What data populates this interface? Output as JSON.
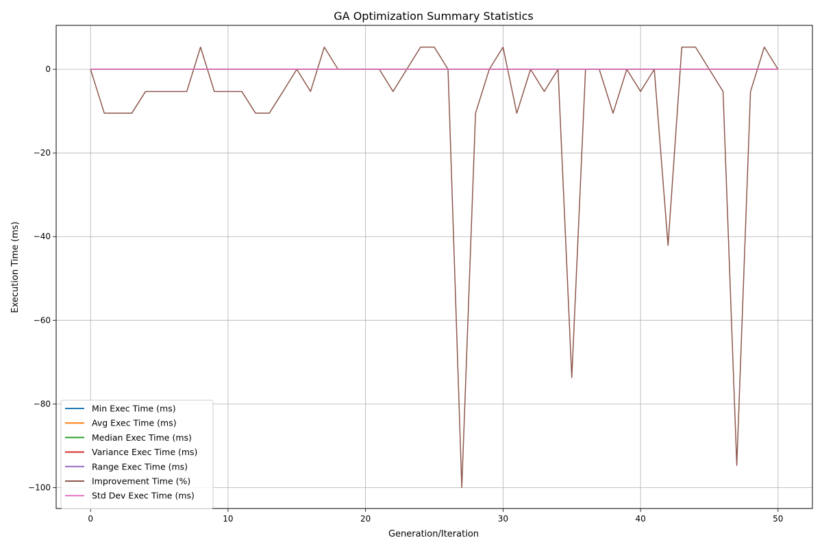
{
  "chart_data": {
    "type": "line",
    "title": "GA Optimization Summary Statistics",
    "xlabel": "Generation/Iteration",
    "ylabel": "Execution Time (ms)",
    "xlim": [
      -2.5,
      52.5
    ],
    "ylim": [
      -105,
      10.5
    ],
    "xticks": [
      0,
      10,
      20,
      30,
      40,
      50
    ],
    "yticks": [
      0,
      -20,
      -40,
      -60,
      -80,
      -100
    ],
    "xtick_labels": [
      "0",
      "10",
      "20",
      "30",
      "40",
      "50"
    ],
    "ytick_labels": [
      "0",
      "−20",
      "−40",
      "−60",
      "−80",
      "−100"
    ],
    "grid": true,
    "legend_position": "lower-left",
    "x": [
      0,
      1,
      2,
      3,
      4,
      5,
      6,
      7,
      8,
      9,
      10,
      11,
      12,
      13,
      14,
      15,
      16,
      17,
      18,
      19,
      20,
      21,
      22,
      23,
      24,
      25,
      26,
      27,
      28,
      29,
      30,
      31,
      32,
      33,
      34,
      35,
      36,
      37,
      38,
      39,
      40,
      41,
      42,
      43,
      44,
      45,
      46,
      47,
      48,
      49,
      50
    ],
    "series": [
      {
        "name": "Min Exec Time (ms)",
        "color": "#1f77b4",
        "values": [
          0.05,
          0.01,
          0.01,
          0.01,
          0.01,
          0.01,
          0.01,
          0.01,
          0.01,
          0.01,
          0.01,
          0.01,
          0.01,
          0.01,
          0.01,
          0.01,
          0.01,
          0.01,
          0.01,
          0.01,
          0.01,
          0.01,
          0.01,
          0.01,
          0.01,
          0.01,
          0.01,
          0.01,
          0.01,
          0.01,
          0.01,
          0.01,
          0.01,
          0.01,
          0.01,
          0.01,
          0.01,
          0.01,
          0.01,
          0.01,
          0.01,
          0.01,
          0.01,
          0.01,
          0.01,
          0.01,
          0.01,
          0.01,
          0.01,
          0.01,
          0.01
        ]
      },
      {
        "name": "Avg Exec Time (ms)",
        "color": "#ff7f0e",
        "values": [
          0.02,
          0.02,
          0.02,
          0.02,
          0.02,
          0.02,
          0.02,
          0.02,
          0.02,
          0.02,
          0.02,
          0.02,
          0.02,
          0.02,
          0.02,
          0.02,
          0.02,
          0.02,
          0.02,
          0.02,
          0.02,
          0.02,
          0.02,
          0.02,
          0.02,
          0.02,
          0.02,
          0.02,
          0.02,
          0.02,
          0.02,
          0.02,
          0.02,
          0.02,
          0.02,
          0.02,
          0.02,
          0.02,
          0.02,
          0.02,
          0.02,
          0.02,
          0.02,
          0.02,
          0.02,
          0.02,
          0.02,
          0.02,
          0.02,
          0.02,
          0.02
        ]
      },
      {
        "name": "Median Exec Time (ms)",
        "color": "#2ca02c",
        "values": [
          0.02,
          0.02,
          0.02,
          0.02,
          0.02,
          0.02,
          0.02,
          0.02,
          0.02,
          0.02,
          0.02,
          0.02,
          0.02,
          0.02,
          0.02,
          0.02,
          0.02,
          0.02,
          0.02,
          0.02,
          0.02,
          0.02,
          0.02,
          0.02,
          0.02,
          0.02,
          0.02,
          0.02,
          0.02,
          0.02,
          0.02,
          0.02,
          0.02,
          0.02,
          0.02,
          0.02,
          0.02,
          0.02,
          0.02,
          0.02,
          0.02,
          0.02,
          0.02,
          0.02,
          0.02,
          0.02,
          0.02,
          0.02,
          0.02,
          0.02,
          0.02
        ]
      },
      {
        "name": "Variance Exec Time (ms)",
        "color": "#d62728",
        "values": [
          0,
          0,
          0,
          0,
          0,
          0,
          0,
          0,
          0,
          0,
          0,
          0,
          0,
          0,
          0,
          0,
          0,
          0,
          0,
          0,
          0,
          0,
          0,
          0,
          0,
          0,
          0,
          0,
          0,
          0,
          0,
          0,
          0,
          0,
          0,
          0,
          0,
          0,
          0,
          0,
          0,
          0,
          0,
          0,
          0,
          0,
          0,
          0,
          0,
          0,
          0
        ]
      },
      {
        "name": "Range Exec Time (ms)",
        "color": "#9467bd",
        "values": [
          0.03,
          0.03,
          0.03,
          0.03,
          0.03,
          0.03,
          0.03,
          0.03,
          0.03,
          0.03,
          0.03,
          0.03,
          0.03,
          0.03,
          0.03,
          0.03,
          0.03,
          0.03,
          0.03,
          0.03,
          0.03,
          0.03,
          0.03,
          0.03,
          0.03,
          0.03,
          0.03,
          0.03,
          0.03,
          0.03,
          0.03,
          0.03,
          0.03,
          0.03,
          0.03,
          0.03,
          0.03,
          0.03,
          0.03,
          0.03,
          0.03,
          0.03,
          0.03,
          0.03,
          0.03,
          0.03,
          0.03,
          0.03,
          0.03,
          0.03,
          0.03
        ]
      },
      {
        "name": "Improvement Time (%)",
        "color": "#8c564b",
        "values": [
          0,
          -10.5,
          -10.5,
          -10.5,
          -5.3,
          -5.3,
          -5.3,
          -5.3,
          5.3,
          -5.3,
          -5.3,
          -5.3,
          -10.5,
          -10.5,
          -5.3,
          0,
          -5.3,
          5.3,
          0,
          0,
          0,
          0,
          -5.3,
          0,
          5.3,
          5.3,
          0,
          -100,
          -10.5,
          0,
          5.3,
          -10.5,
          0,
          -5.3,
          0,
          -73.7,
          0,
          0,
          -10.5,
          0,
          -5.3,
          0,
          -42.1,
          5.3,
          5.3,
          0,
          -5.3,
          -94.7,
          -5.3,
          5.3,
          0
        ]
      },
      {
        "name": "Std Dev Exec Time (ms)",
        "color": "#e377c2",
        "values": [
          0.01,
          0.01,
          0.01,
          0.01,
          0.01,
          0.01,
          0.01,
          0.01,
          0.01,
          0.01,
          0.01,
          0.01,
          0.01,
          0.01,
          0.01,
          0.01,
          0.01,
          0.01,
          0.01,
          0.01,
          0.01,
          0.01,
          0.01,
          0.01,
          0.01,
          0.01,
          0.01,
          0.01,
          0.01,
          0.01,
          0.01,
          0.01,
          0.01,
          0.01,
          0.01,
          0.01,
          0.01,
          0.01,
          0.01,
          0.01,
          0.01,
          0.01,
          0.01,
          0.01,
          0.01,
          0.01,
          0.01,
          0.01,
          0.01,
          0.01,
          0.01
        ]
      }
    ]
  }
}
